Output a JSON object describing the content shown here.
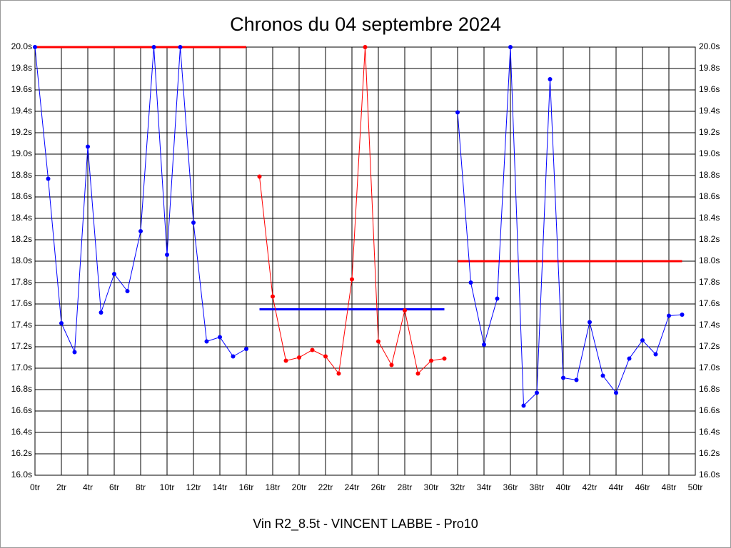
{
  "chart_data": {
    "type": "line",
    "title": "Chronos du 04 septembre 2024",
    "xlabel": "Vin R2_8.5t - VINCENT LABBE - Pro10",
    "xlim": [
      0,
      50
    ],
    "ylim": [
      16.0,
      20.0
    ],
    "grid": true,
    "xticks": [
      {
        "value": 0,
        "label": "0tr"
      },
      {
        "value": 2,
        "label": "2tr"
      },
      {
        "value": 4,
        "label": "4tr"
      },
      {
        "value": 6,
        "label": "6tr"
      },
      {
        "value": 8,
        "label": "8tr"
      },
      {
        "value": 10,
        "label": "10tr"
      },
      {
        "value": 12,
        "label": "12tr"
      },
      {
        "value": 14,
        "label": "14tr"
      },
      {
        "value": 16,
        "label": "16tr"
      },
      {
        "value": 18,
        "label": "18tr"
      },
      {
        "value": 20,
        "label": "20tr"
      },
      {
        "value": 22,
        "label": "22tr"
      },
      {
        "value": 24,
        "label": "24tr"
      },
      {
        "value": 26,
        "label": "26tr"
      },
      {
        "value": 28,
        "label": "28tr"
      },
      {
        "value": 30,
        "label": "30tr"
      },
      {
        "value": 32,
        "label": "32tr"
      },
      {
        "value": 34,
        "label": "34tr"
      },
      {
        "value": 36,
        "label": "36tr"
      },
      {
        "value": 38,
        "label": "38tr"
      },
      {
        "value": 40,
        "label": "40tr"
      },
      {
        "value": 42,
        "label": "42tr"
      },
      {
        "value": 44,
        "label": "44tr"
      },
      {
        "value": 46,
        "label": "46tr"
      },
      {
        "value": 48,
        "label": "48tr"
      },
      {
        "value": 50,
        "label": "50tr"
      }
    ],
    "yticks": [
      {
        "value": 16.0,
        "label": "16.0s"
      },
      {
        "value": 16.2,
        "label": "16.2s"
      },
      {
        "value": 16.4,
        "label": "16.4s"
      },
      {
        "value": 16.6,
        "label": "16.6s"
      },
      {
        "value": 16.8,
        "label": "16.8s"
      },
      {
        "value": 17.0,
        "label": "17.0s"
      },
      {
        "value": 17.2,
        "label": "17.2s"
      },
      {
        "value": 17.4,
        "label": "17.4s"
      },
      {
        "value": 17.6,
        "label": "17.6s"
      },
      {
        "value": 17.8,
        "label": "17.8s"
      },
      {
        "value": 18.0,
        "label": "18.0s"
      },
      {
        "value": 18.2,
        "label": "18.2s"
      },
      {
        "value": 18.4,
        "label": "18.4s"
      },
      {
        "value": 18.6,
        "label": "18.6s"
      },
      {
        "value": 18.8,
        "label": "18.8s"
      },
      {
        "value": 19.0,
        "label": "19.0s"
      },
      {
        "value": 19.2,
        "label": "19.2s"
      },
      {
        "value": 19.4,
        "label": "19.4s"
      },
      {
        "value": 19.6,
        "label": "19.6s"
      },
      {
        "value": 19.8,
        "label": "19.8s"
      },
      {
        "value": 20.0,
        "label": "20.0s"
      }
    ],
    "series": [
      {
        "color": "#0000ff",
        "x": [
          0,
          1,
          2,
          3,
          4,
          5,
          6,
          7,
          8,
          9,
          10,
          11,
          12,
          13,
          14,
          15,
          16
        ],
        "values": [
          20.0,
          18.77,
          17.42,
          17.15,
          19.07,
          17.52,
          17.88,
          17.72,
          18.28,
          20.0,
          18.06,
          20.0,
          18.36,
          17.25,
          17.29,
          17.11,
          17.18
        ]
      },
      {
        "color": "#ff0000",
        "x": [
          17,
          18,
          19,
          20,
          21,
          22,
          23,
          24,
          25,
          26,
          27,
          28,
          29,
          30,
          31
        ],
        "values": [
          18.79,
          17.67,
          17.07,
          17.1,
          17.17,
          17.11,
          16.95,
          17.83,
          20.0,
          17.25,
          17.03,
          17.54,
          16.95,
          17.07,
          17.09
        ]
      },
      {
        "color": "#0000ff",
        "x": [
          32,
          33,
          34,
          35,
          36,
          37,
          38,
          39,
          40,
          41,
          42,
          43,
          44,
          45,
          46,
          47,
          48,
          49
        ],
        "values": [
          19.39,
          17.8,
          17.22,
          17.65,
          20.0,
          16.65,
          16.77,
          19.7,
          16.91,
          16.89,
          17.43,
          16.93,
          16.77,
          17.09,
          17.26,
          17.13,
          17.49,
          17.5
        ]
      }
    ],
    "reference_lines": [
      {
        "value": 20.0,
        "x": [
          0,
          16
        ],
        "color": "#ff0000"
      },
      {
        "value": 17.55,
        "x": [
          17,
          31
        ],
        "color": "#0000ff"
      },
      {
        "value": 18.0,
        "x": [
          32,
          49
        ],
        "color": "#ff0000"
      }
    ]
  }
}
